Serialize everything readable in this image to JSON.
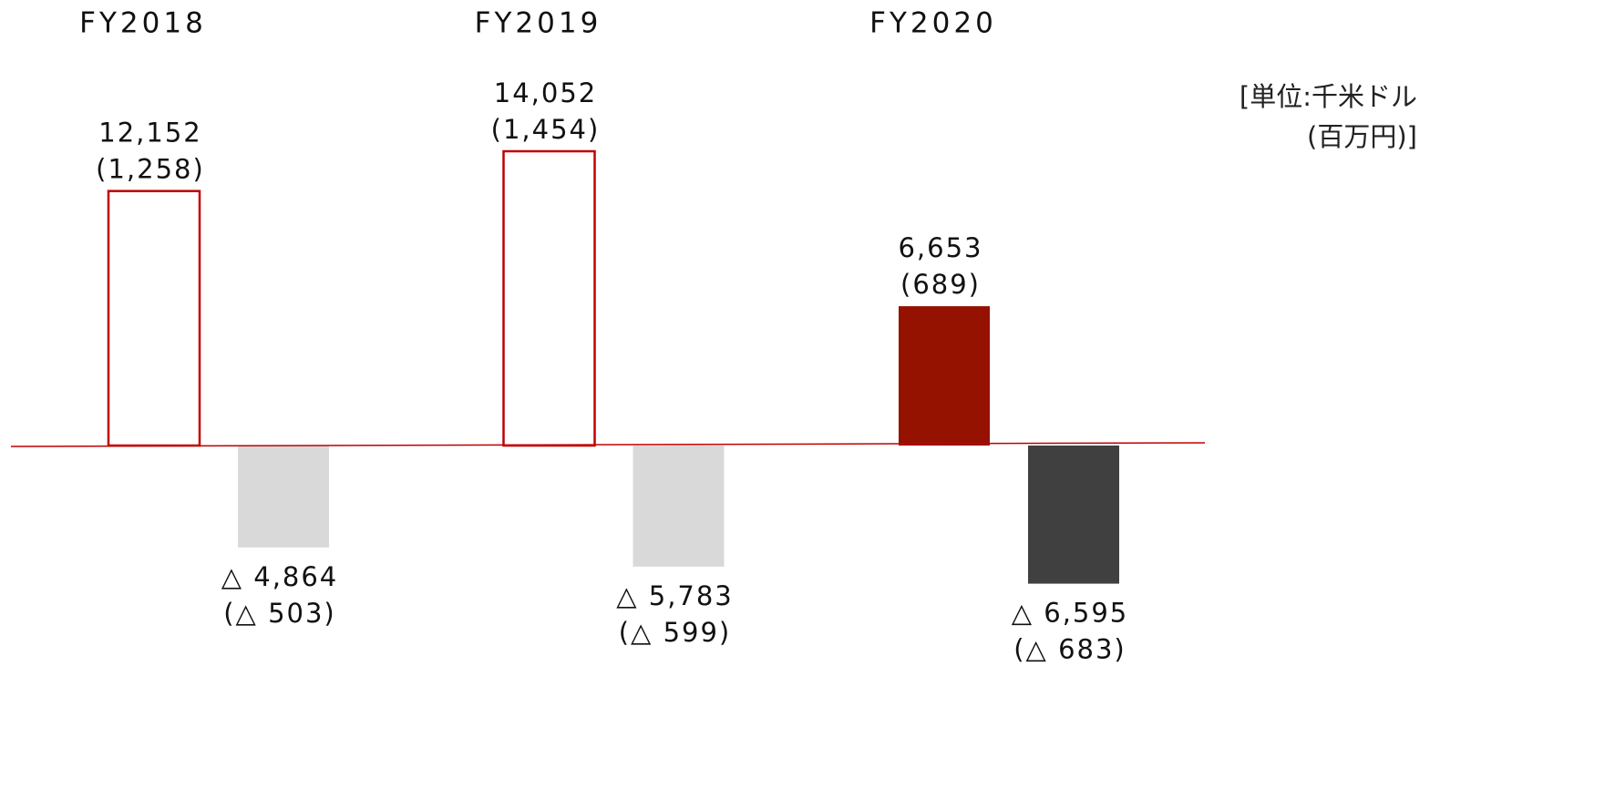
{
  "chart_data": {
    "type": "bar",
    "categories": [
      "FY2018",
      "FY2019",
      "FY2020"
    ],
    "unit_label": [
      "[単位:千米ドル",
      "(百万円)]"
    ],
    "series": [
      {
        "values": [
          12152,
          14052,
          6653
        ],
        "value_labels": [
          "12,152",
          "14,052",
          "6,653"
        ],
        "sub_labels": [
          "(1,258)",
          "(1,454)",
          "(689)"
        ],
        "colors": [
          "#c00000",
          "#c00000",
          "#951100"
        ],
        "filled": [
          false,
          false,
          true
        ]
      },
      {
        "values": [
          -4864,
          -5783,
          -6595
        ],
        "value_labels": [
          "△ 4,864",
          "△ 5,783",
          "△ 6,595"
        ],
        "sub_labels": [
          "(△ 503)",
          "(△ 599)",
          "(△ 683)"
        ],
        "colors": [
          "#d9d9d9",
          "#d9d9d9",
          "#404040"
        ],
        "filled": [
          true,
          true,
          true
        ]
      }
    ],
    "zero_line_color": "#c00000"
  }
}
